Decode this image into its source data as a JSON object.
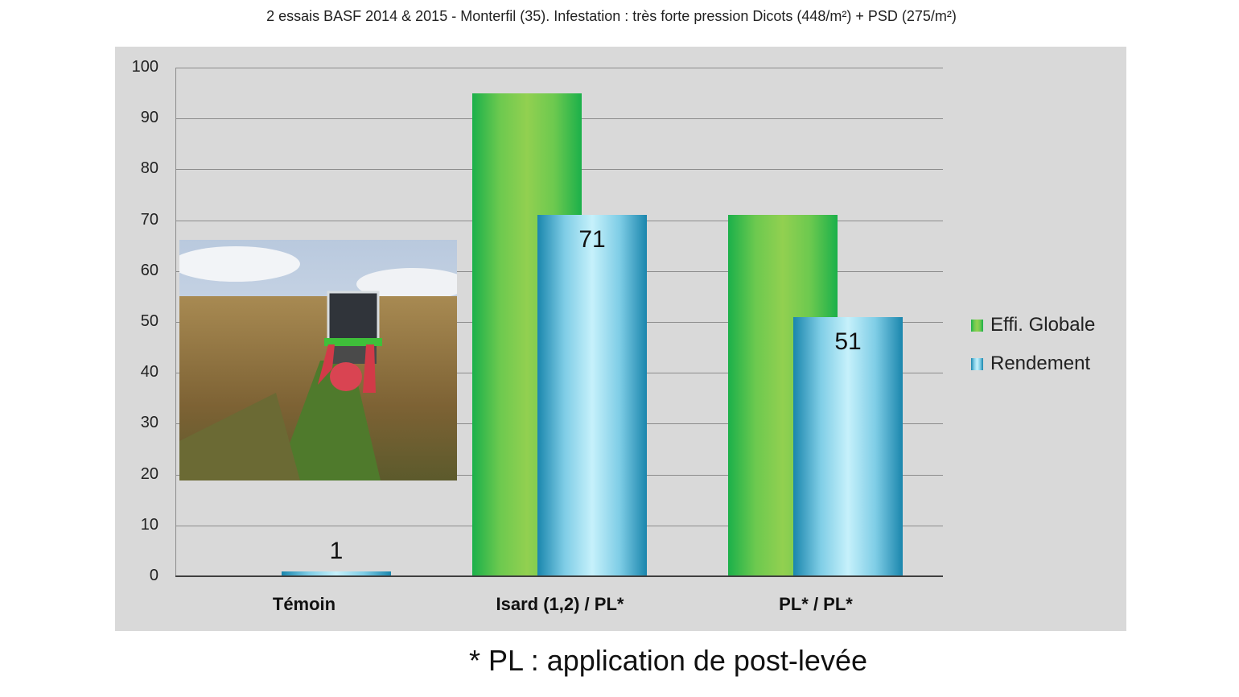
{
  "title": "2 essais BASF 2014 & 2015 - Monterfil (35). Infestation : très forte pression Dicots (448/m²) + PSD (275/m²)",
  "footnote": "* PL : application de post-levée",
  "photo": {
    "description": "maize field with harvester",
    "icon": "photo-icon"
  },
  "colors": {
    "effi_globale": "#92d050",
    "rendement": "#9fe0f2",
    "panel_bg": "#d9d9d9",
    "grid": "#8c8c8c"
  },
  "axis": {
    "y_ticks": [
      "0",
      "10",
      "20",
      "30",
      "40",
      "50",
      "60",
      "70",
      "80",
      "90",
      "100"
    ]
  },
  "legend": {
    "items": [
      {
        "label": "Effi. Globale"
      },
      {
        "label": "Rendement"
      }
    ]
  },
  "categories": [
    {
      "label": "Témoin",
      "effi": 0,
      "rend": 1,
      "rend_label": "1"
    },
    {
      "label": "Isard (1,2) / PL*",
      "effi": 95,
      "rend": 71,
      "rend_label": "71"
    },
    {
      "label": "PL* / PL*",
      "effi": 71,
      "rend": 51,
      "rend_label": "51"
    }
  ],
  "chart_data": {
    "type": "bar",
    "title": "2 essais BASF 2014 & 2015 - Monterfil (35). Infestation : très forte pression Dicots (448/m²) + PSD (275/m²)",
    "categories": [
      "Témoin",
      "Isard (1,2) / PL*",
      "PL* / PL*"
    ],
    "series": [
      {
        "name": "Effi. Globale",
        "values": [
          0,
          95,
          71
        ]
      },
      {
        "name": "Rendement",
        "values": [
          1,
          71,
          51
        ],
        "data_labels": [
          "1",
          "71",
          "51"
        ]
      }
    ],
    "xlabel": "",
    "ylabel": "",
    "ylim": [
      0,
      100
    ],
    "y_ticks": [
      0,
      10,
      20,
      30,
      40,
      50,
      60,
      70,
      80,
      90,
      100
    ],
    "grid": true,
    "legend_position": "right",
    "annotations": [
      "* PL : application de post-levée"
    ]
  }
}
